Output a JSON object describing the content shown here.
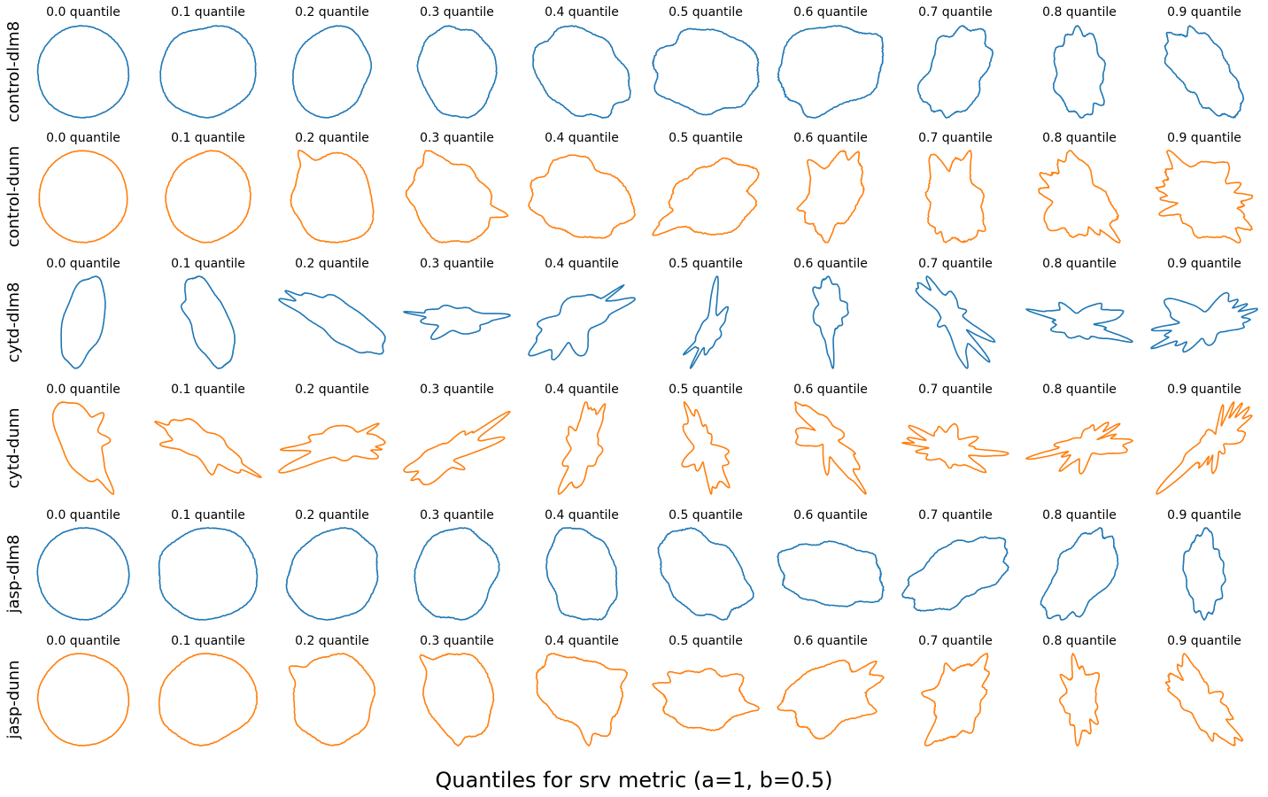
{
  "chart_data": {
    "type": "shape-grid",
    "title": "Quantiles for srv metric (a=1, b=0.5)",
    "columns": [
      "0.0 quantile",
      "0.1 quantile",
      "0.2 quantile",
      "0.3 quantile",
      "0.4 quantile",
      "0.5 quantile",
      "0.6 quantile",
      "0.7 quantile",
      "0.8 quantile",
      "0.9 quantile"
    ],
    "rows": [
      {
        "label": "control-dlm8",
        "color": "#1f77b4"
      },
      {
        "label": "control-dunn",
        "color": "#ff7f0e"
      },
      {
        "label": "cytd-dlm8",
        "color": "#1f77b4"
      },
      {
        "label": "cytd-dunn",
        "color": "#ff7f0e"
      },
      {
        "label": "jasp-dlm8",
        "color": "#1f77b4"
      },
      {
        "label": "jasp-dunn",
        "color": "#ff7f0e"
      }
    ],
    "grid": false,
    "axes": "off"
  }
}
